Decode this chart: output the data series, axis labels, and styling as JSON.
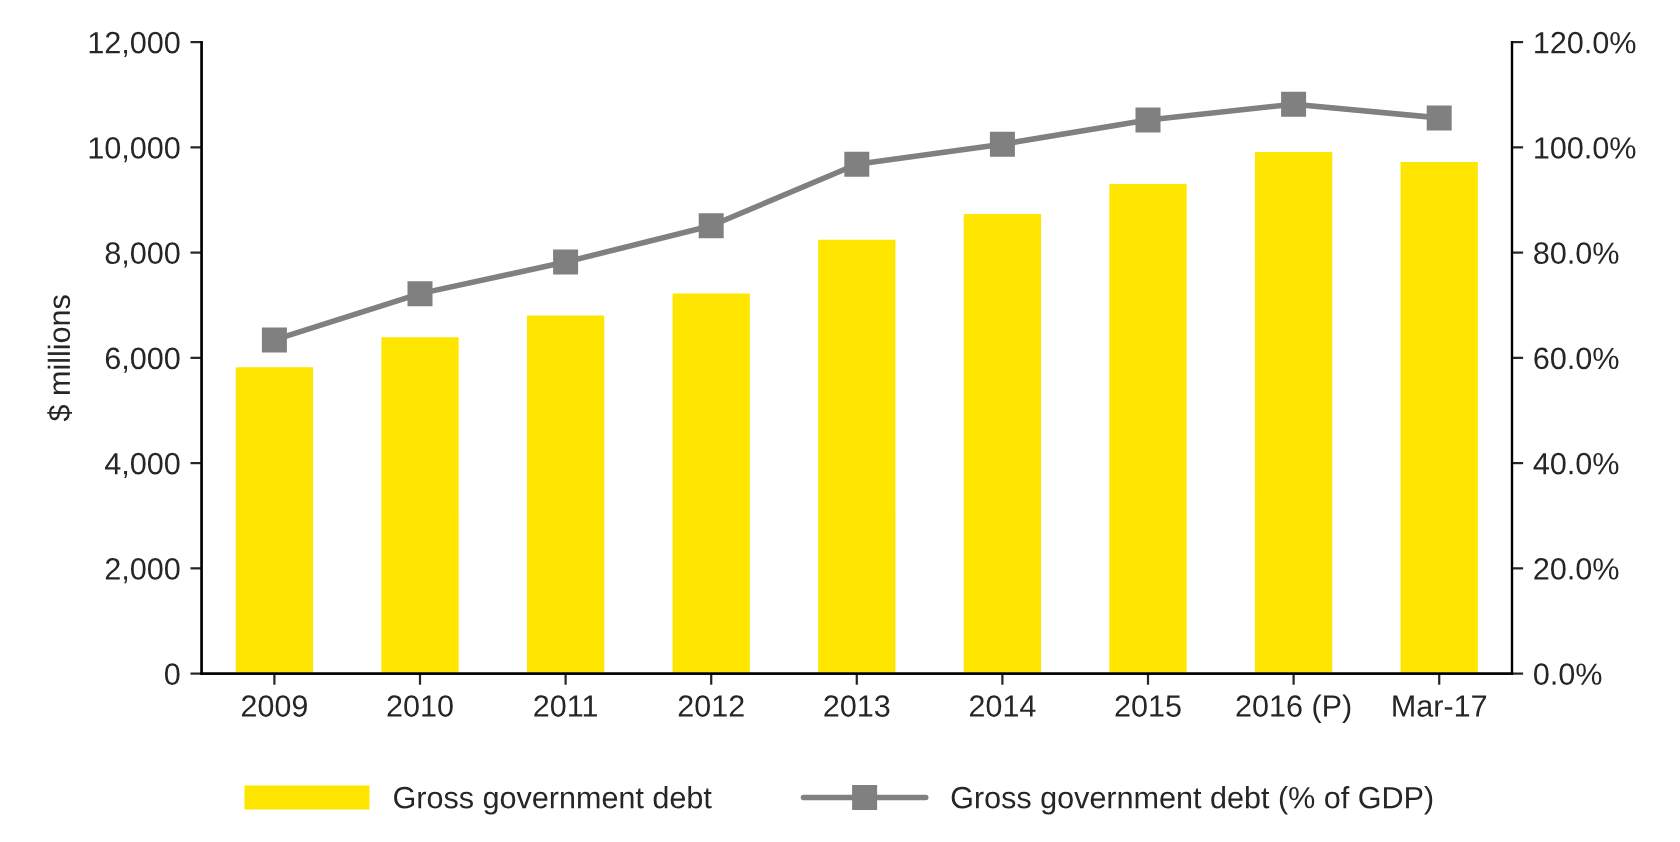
{
  "chart_data": {
    "type": "bar",
    "ylabel": "$ millions",
    "categories": [
      "2009",
      "2010",
      "2011",
      "2012",
      "2013",
      "2014",
      "2015",
      "2016 (P)",
      "Mar-17"
    ],
    "series": [
      {
        "name": "Gross government debt",
        "color": "#ffe600",
        "values": [
          5850,
          6420,
          6830,
          7250,
          8270,
          8760,
          9330,
          9940,
          9750
        ]
      },
      {
        "name": "Gross government debt (% of GDP)",
        "type": "line",
        "axis": "y2",
        "color": "#808080",
        "marker": "square",
        "values": [
          63.4,
          72.2,
          78.2,
          85.1,
          96.8,
          100.6,
          105.2,
          108.2,
          105.6
        ]
      }
    ],
    "ylim": [
      0,
      12000
    ],
    "yticks": [
      0,
      {
        "value": 2000,
        "label": "2,000"
      },
      {
        "value": 4000,
        "label": "4,000"
      },
      {
        "value": 6000,
        "label": "6,000"
      },
      {
        "value": 8000,
        "label": "8,000"
      },
      {
        "value": 10000,
        "label": "10,000"
      },
      {
        "value": 12000,
        "label": "12,000"
      }
    ],
    "y2lim": [
      0,
      120
    ],
    "y2ticks": [
      {
        "value": 0,
        "label": "0.0%"
      },
      {
        "value": 20,
        "label": "20.0%"
      },
      {
        "value": 40,
        "label": "40.0%"
      },
      {
        "value": 60,
        "label": "60.0%"
      },
      {
        "value": 80,
        "label": "80.0%"
      },
      {
        "value": 100,
        "label": "100.0%"
      },
      {
        "value": 120,
        "label": "120.0%"
      }
    ],
    "grid": false,
    "legend": "bottom"
  }
}
